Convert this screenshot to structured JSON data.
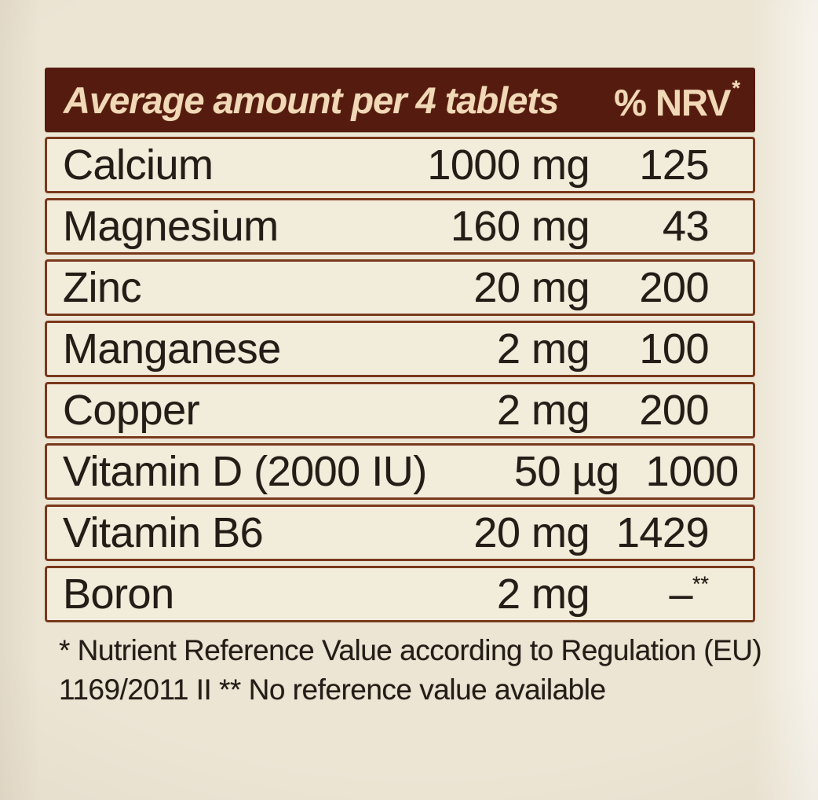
{
  "header": {
    "title": "Average amount per 4 tablets",
    "nrv_label": "% NRV",
    "nrv_sup": "*"
  },
  "rows": [
    {
      "name": "Calcium",
      "amount": "1000 mg",
      "nrv": "125",
      "nrv_sup": ""
    },
    {
      "name": "Magnesium",
      "amount": "160 mg",
      "nrv": "43",
      "nrv_sup": ""
    },
    {
      "name": "Zinc",
      "amount": "20 mg",
      "nrv": "200",
      "nrv_sup": ""
    },
    {
      "name": "Manganese",
      "amount": "2 mg",
      "nrv": "100",
      "nrv_sup": ""
    },
    {
      "name": "Copper",
      "amount": "2 mg",
      "nrv": "200",
      "nrv_sup": ""
    },
    {
      "name": "Vitamin D (2000 IU)",
      "amount": "50 µg",
      "nrv": "1000",
      "nrv_sup": ""
    },
    {
      "name": "Vitamin B6",
      "amount": "20 mg",
      "nrv": "1429",
      "nrv_sup": ""
    },
    {
      "name": "Boron",
      "amount": "2 mg",
      "nrv": "–",
      "nrv_sup": "**"
    }
  ],
  "footnote": {
    "line1": "* Nutrient Reference Value according to Regulation (EU)",
    "line2": "1169/2011 II ** No reference value available"
  },
  "colors": {
    "header_bg": "#551b0e",
    "header_text": "#f1d9b8",
    "row_bg": "#f2ecdb",
    "row_border": "#7a381c",
    "label_bg": "#ece5d4",
    "text": "#241d17"
  }
}
